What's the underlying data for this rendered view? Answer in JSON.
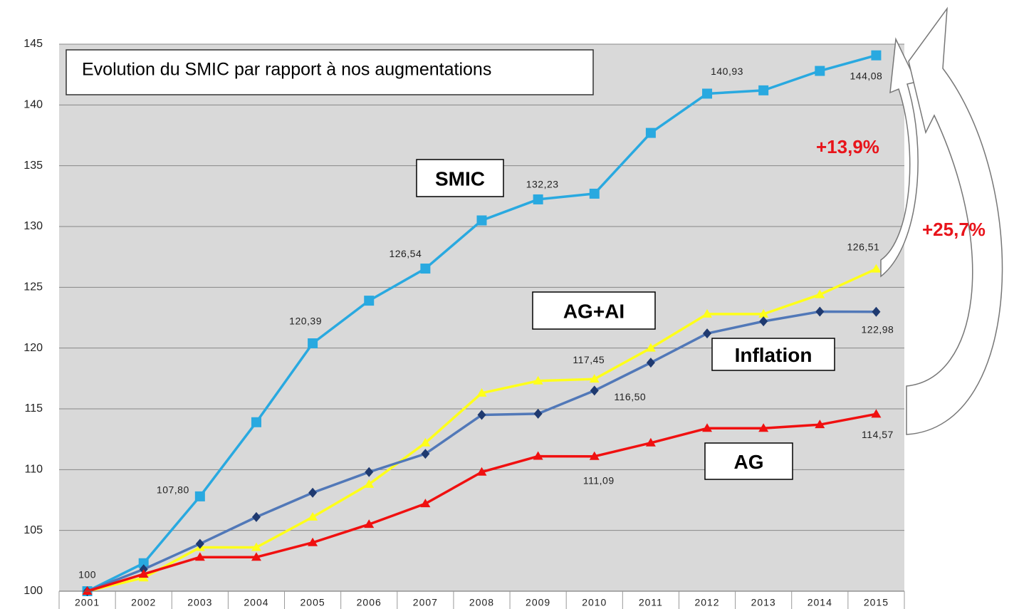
{
  "chart_data": {
    "type": "line",
    "title": "Evolution du SMIC par rapport à nos augmentations",
    "categories": [
      "2001",
      "2002",
      "2003",
      "2004",
      "2005",
      "2006",
      "2007",
      "2008",
      "2009",
      "2010",
      "2011",
      "2012",
      "2013",
      "2014",
      "2015"
    ],
    "ylim": [
      100,
      145
    ],
    "yticks": [
      100,
      105,
      110,
      115,
      120,
      125,
      130,
      135,
      140,
      145
    ],
    "grid": true,
    "series": [
      {
        "name": "SMIC",
        "color": "#29a9e0",
        "marker": "square",
        "values": [
          100,
          102.3,
          107.8,
          113.9,
          120.39,
          123.9,
          126.54,
          130.5,
          132.23,
          132.7,
          137.7,
          140.93,
          141.2,
          142.8,
          144.08
        ],
        "value_labels": [
          "100",
          null,
          "107,80",
          null,
          "120,39",
          null,
          "126,54",
          null,
          "132,23",
          null,
          null,
          "140,93",
          null,
          null,
          "144,08"
        ]
      },
      {
        "name": "AG+AI",
        "color": "#ffff1a",
        "marker": "triangle",
        "values": [
          100,
          101.1,
          103.6,
          103.6,
          106.1,
          108.8,
          112.2,
          116.3,
          117.3,
          117.45,
          120.0,
          122.8,
          122.8,
          124.4,
          126.51
        ],
        "value_labels": [
          null,
          null,
          null,
          null,
          null,
          null,
          null,
          null,
          null,
          "117,45",
          null,
          null,
          null,
          null,
          "126,51"
        ]
      },
      {
        "name": "Inflation",
        "color": "#5178b8",
        "marker": "diamond",
        "values": [
          100,
          101.8,
          103.9,
          106.1,
          108.1,
          109.8,
          111.3,
          114.5,
          114.6,
          116.5,
          118.8,
          121.2,
          122.2,
          123.0,
          122.98
        ],
        "value_labels": [
          null,
          null,
          null,
          null,
          null,
          null,
          null,
          null,
          null,
          "116,50",
          null,
          null,
          null,
          null,
          "122,98"
        ]
      },
      {
        "name": "AG",
        "color": "#f01010",
        "marker": "triangle",
        "values": [
          100,
          101.4,
          102.8,
          102.8,
          104.0,
          105.5,
          107.2,
          109.8,
          111.1,
          111.09,
          112.2,
          113.4,
          113.4,
          113.7,
          114.57
        ],
        "value_labels": [
          null,
          null,
          null,
          null,
          null,
          null,
          null,
          null,
          null,
          "111,09",
          null,
          null,
          null,
          null,
          "114,57"
        ]
      }
    ],
    "annotations": [
      "+13,9%",
      "+25,7%"
    ]
  }
}
